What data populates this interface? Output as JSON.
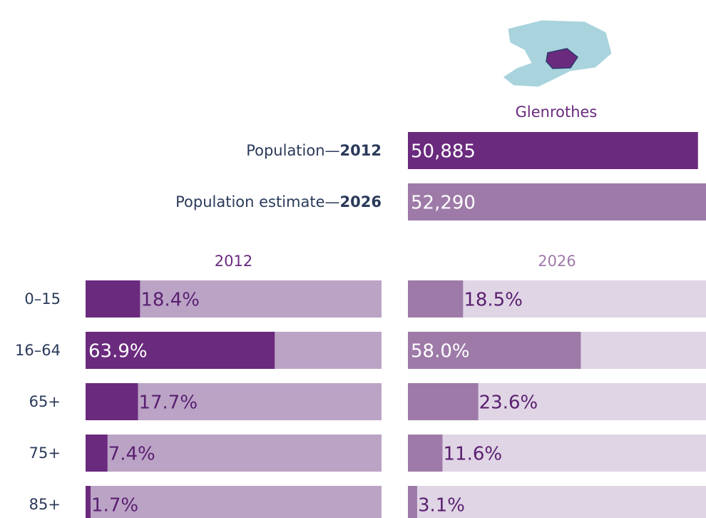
{
  "area": "Glenrothes",
  "chart_data": [
    {
      "type": "population",
      "rows": [
        {
          "label": "Population—",
          "year": "2012"
        },
        {
          "label": "Population estimate—",
          "year": "2026"
        }
      ],
      "values": [
        50885,
        52290
      ],
      "value_labels": [
        "50,885",
        "52,290"
      ],
      "colors": [
        "#6a2a7e",
        "#9e7aa8"
      ],
      "xlim": [
        0,
        52290
      ]
    },
    {
      "type": "bar",
      "title": "2012",
      "categories": [
        "0–15",
        "16–64",
        "65+",
        "75+",
        "85+"
      ],
      "values": [
        18.4,
        63.9,
        17.7,
        7.4,
        1.7
      ],
      "value_labels": [
        "18.4%",
        "63.9%",
        "17.7%",
        "7.4%",
        "1.7%"
      ],
      "color": "#6a2a7e",
      "track_color": "#bba3c6",
      "xlim": [
        0,
        100
      ]
    },
    {
      "type": "bar",
      "title": "2026",
      "values": [
        18.5,
        58.0,
        23.6,
        11.6,
        3.1
      ],
      "value_labels": [
        "18.5%",
        "58.0%",
        "23.6%",
        "11.6%",
        "3.1%"
      ],
      "color": "#9e7aa8",
      "track_color": "#e0d5e5",
      "xlim": [
        0,
        100
      ]
    }
  ]
}
